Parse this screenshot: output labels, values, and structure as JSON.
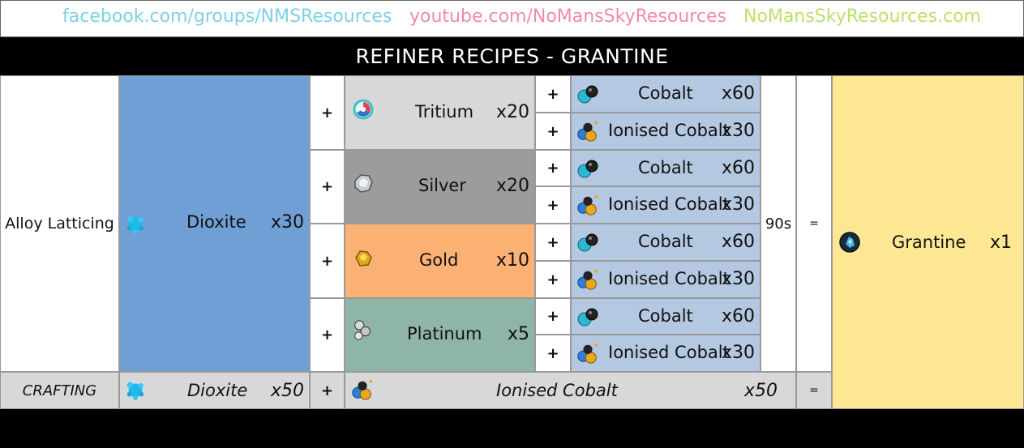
{
  "header": {
    "link_facebook": "facebook.com/groups/NMSResources",
    "link_youtube": "youtube.com/NoMansSkyResources",
    "link_site": "NoMansSkyResources.com",
    "title": "REFINER RECIPES - GRANTINE",
    "colors": {
      "facebook": "#7fd0e8",
      "youtube": "#f08aa8",
      "site": "#bde06a"
    }
  },
  "recipe": {
    "process": "Alloy Latticing",
    "primary": {
      "name": "Dioxite",
      "qty": "x30",
      "icon": "dioxite-icon",
      "color": "#6f9fd4"
    },
    "time": "90s",
    "equals": "=",
    "plus": "+",
    "secondaries": [
      {
        "name": "Tritium",
        "qty": "x20",
        "icon": "tritium-icon",
        "color": "#d8d8d8"
      },
      {
        "name": "Silver",
        "qty": "x20",
        "icon": "silver-icon",
        "color": "#9c9c9c"
      },
      {
        "name": "Gold",
        "qty": "x10",
        "icon": "gold-icon",
        "color": "#fbb173"
      },
      {
        "name": "Platinum",
        "qty": "x5",
        "icon": "platinum-icon",
        "color": "#8fb5a8"
      }
    ],
    "catalysts": [
      {
        "name": "Cobalt",
        "qty": "x60",
        "icon": "cobalt-icon"
      },
      {
        "name": "Ionised Cobalt",
        "qty": "x30",
        "icon": "ionised-cobalt-icon"
      }
    ],
    "catalyst_color": "#b4c8e2",
    "output": {
      "name": "Grantine",
      "qty": "x1",
      "icon": "grantine-icon",
      "color": "#fde793"
    }
  },
  "crafting": {
    "label": "CRAFTING",
    "ingredient1": {
      "name": "Dioxite",
      "qty": "x50"
    },
    "ingredient2": {
      "name": "Ionised Cobalt",
      "qty": "x50"
    },
    "plus": "+",
    "equals": "=",
    "color": "#d8d8d8"
  }
}
